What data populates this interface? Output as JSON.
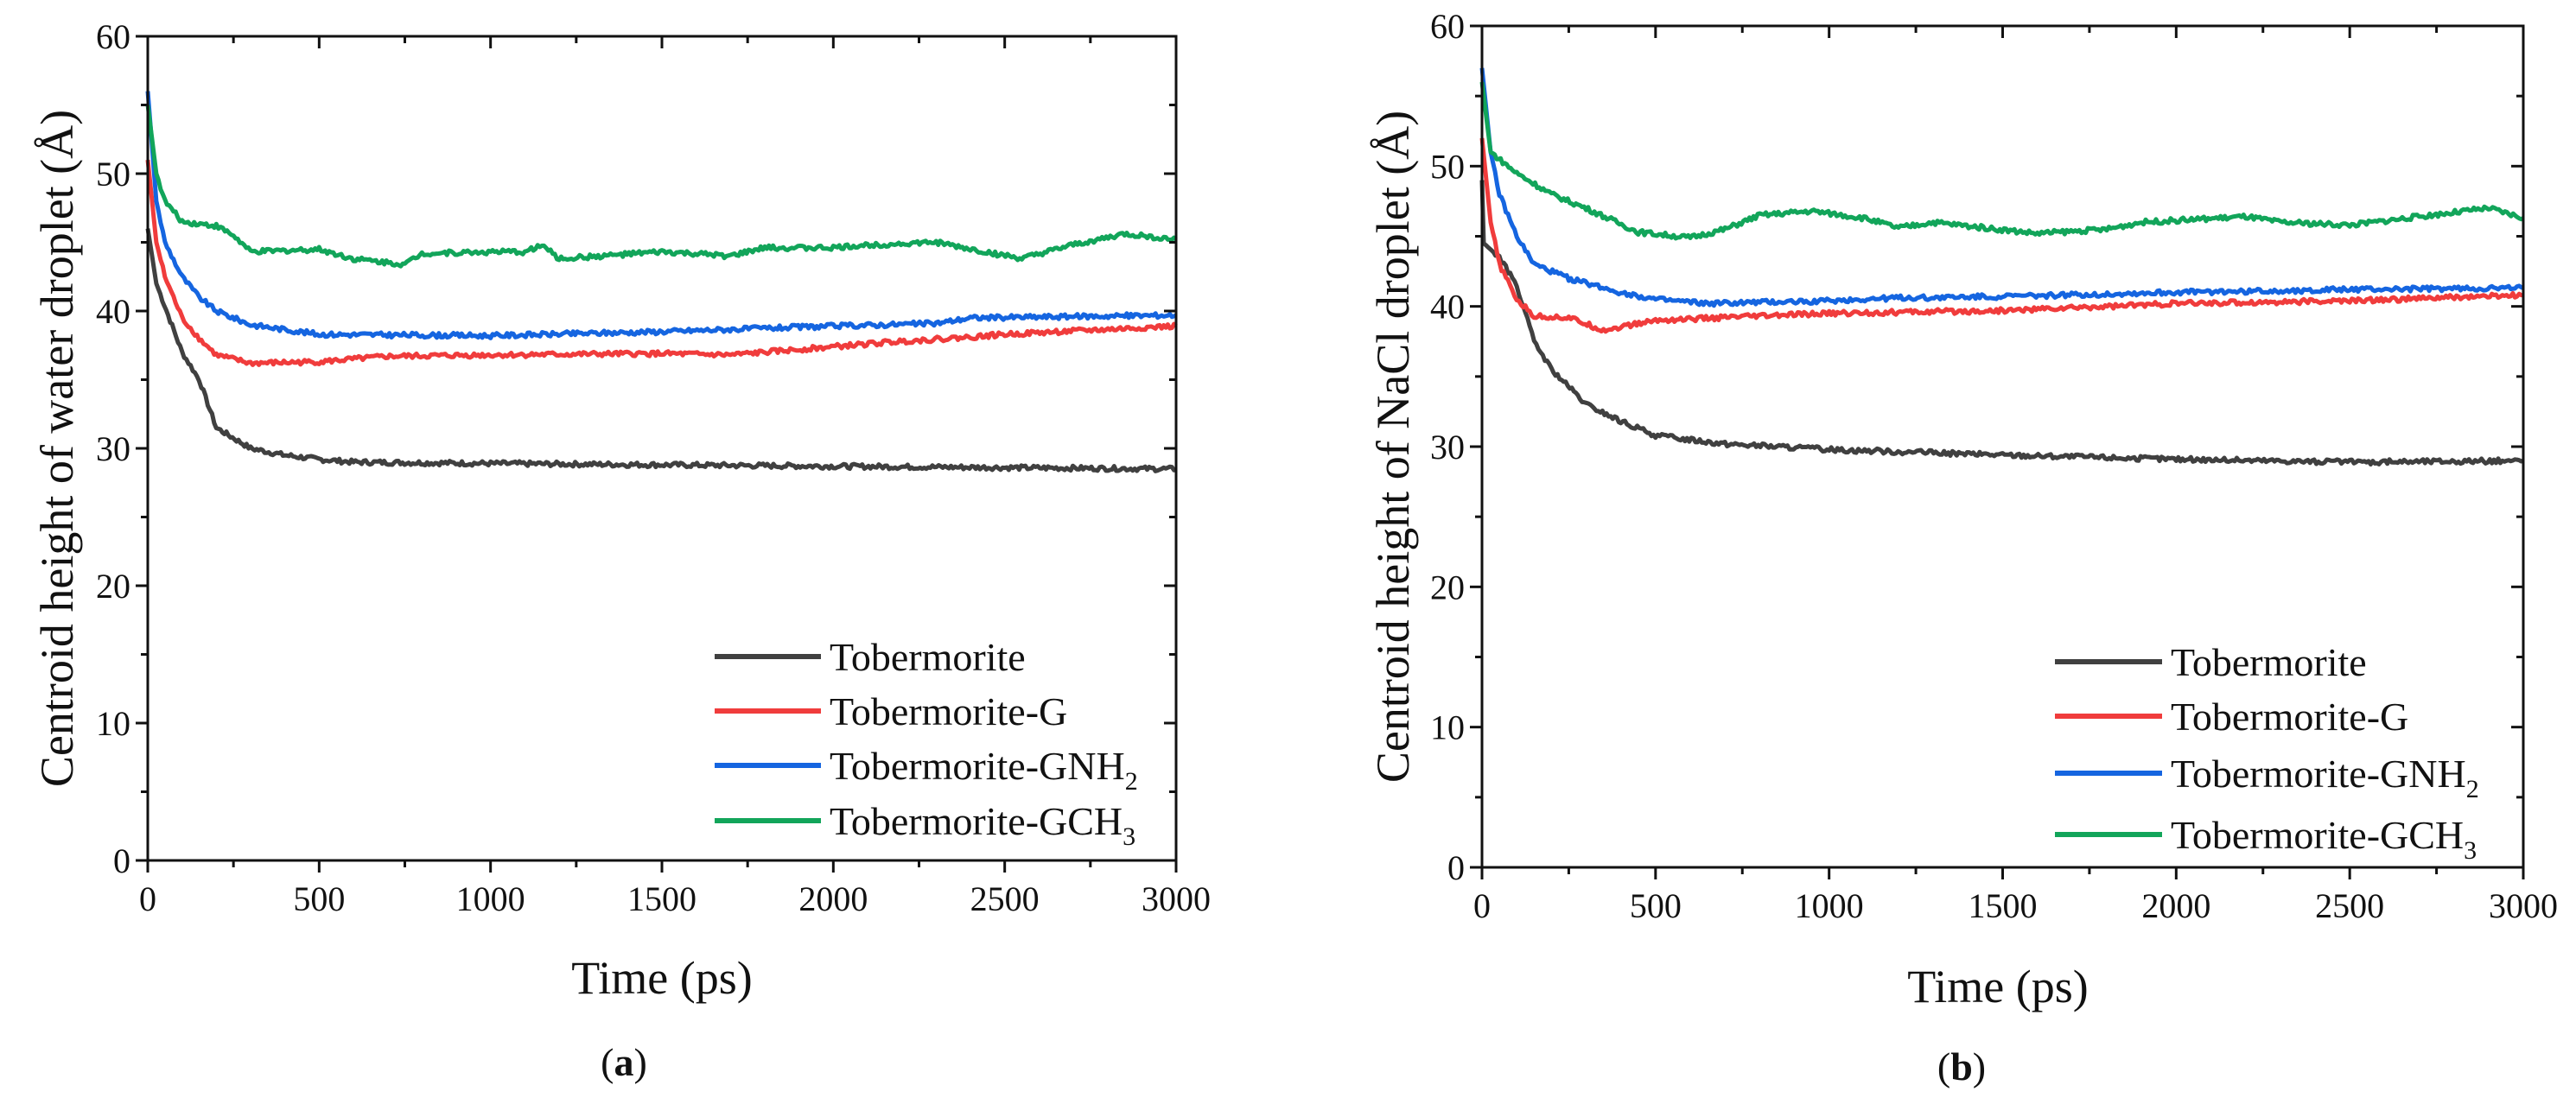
{
  "chart_data": [
    {
      "type": "line",
      "panel_label": "a",
      "xlabel": "Time (ps)",
      "ylabel": "Centroid height of water droplet (Å)",
      "xlim": [
        0,
        3000
      ],
      "ylim": [
        0,
        60
      ],
      "xticks": [
        0,
        500,
        1000,
        1500,
        2000,
        2500,
        3000
      ],
      "yticks": [
        0,
        10,
        20,
        30,
        40,
        50,
        60
      ],
      "legend_position": "bottom-right",
      "series": [
        {
          "name": "Tobermorite",
          "label": {
            "text": "Tobermorite",
            "sub": ""
          },
          "color": "#404040",
          "x": [
            0,
            25,
            100,
            150,
            200,
            300,
            400,
            500,
            600,
            1000,
            1500,
            2000,
            2500,
            3000
          ],
          "y": [
            46,
            42,
            37,
            35,
            31.5,
            30,
            29.5,
            29.2,
            29,
            28.9,
            28.8,
            28.7,
            28.6,
            28.5
          ]
        },
        {
          "name": "Tobermorite-G",
          "label": {
            "text": "Tobermorite-G",
            "sub": ""
          },
          "color": "#f03c3c",
          "x": [
            0,
            25,
            50,
            100,
            150,
            200,
            300,
            500,
            700,
            1000,
            1500,
            1700,
            2000,
            2200,
            2400,
            2500,
            3000
          ],
          "y": [
            51,
            45,
            42.5,
            39.5,
            38,
            36.8,
            36.2,
            36.3,
            36.7,
            36.8,
            36.9,
            36.8,
            37.4,
            37.8,
            38.1,
            38.3,
            38.9
          ]
        },
        {
          "name": "Tobermorite-GNH2",
          "label": {
            "text": "Tobermorite-GNH",
            "sub": "2"
          },
          "color": "#1565e0",
          "x": [
            0,
            25,
            50,
            100,
            150,
            200,
            300,
            500,
            1000,
            1500,
            2000,
            2300,
            2400,
            3000
          ],
          "y": [
            56,
            48,
            45,
            42.5,
            41,
            40,
            39,
            38.3,
            38.2,
            38.5,
            38.9,
            39.1,
            39.5,
            39.7
          ]
        },
        {
          "name": "Tobermorite-GCH3",
          "label": {
            "text": "Tobermorite-GCH",
            "sub": "3"
          },
          "color": "#12a55a",
          "x": [
            0,
            25,
            50,
            100,
            200,
            250,
            300,
            400,
            500,
            600,
            750,
            800,
            1000,
            1100,
            1150,
            1200,
            1500,
            1700,
            1800,
            2000,
            2100,
            2300,
            2400,
            2550,
            2700,
            2850,
            3000
          ],
          "y": [
            55,
            50,
            48,
            46.5,
            46.2,
            45.5,
            44.3,
            44.4,
            44.5,
            43.8,
            43.4,
            44.2,
            44.3,
            44.3,
            44.8,
            43.8,
            44.3,
            44,
            44.6,
            44.6,
            44.8,
            45,
            44.5,
            43.8,
            44.8,
            45.6,
            45.2
          ]
        }
      ]
    },
    {
      "type": "line",
      "panel_label": "b",
      "xlabel": "Time (ps)",
      "ylabel": "Centroid height of NaCl droplet (Å)",
      "xlim": [
        0,
        3000
      ],
      "ylim": [
        0,
        60
      ],
      "xticks": [
        0,
        500,
        1000,
        1500,
        2000,
        2500,
        3000
      ],
      "yticks": [
        0,
        10,
        20,
        30,
        40,
        50,
        60
      ],
      "legend_position": "bottom-right",
      "series": [
        {
          "name": "Tobermorite",
          "label": {
            "text": "Tobermorite",
            "sub": ""
          },
          "color": "#404040",
          "x": [
            0,
            5,
            50,
            100,
            150,
            200,
            300,
            400,
            500,
            700,
            1000,
            1500,
            2000,
            2500,
            3000
          ],
          "y": [
            49,
            44.5,
            43.5,
            41.5,
            37.5,
            35.5,
            33,
            31.8,
            30.8,
            30.2,
            29.8,
            29.4,
            29.1,
            28.9,
            29
          ]
        },
        {
          "name": "Tobermorite-G",
          "label": {
            "text": "Tobermorite-G",
            "sub": ""
          },
          "color": "#f03c3c",
          "x": [
            0,
            25,
            50,
            100,
            150,
            250,
            350,
            500,
            700,
            1000,
            1500,
            2000,
            2500,
            3000
          ],
          "y": [
            52,
            46,
            43,
            40.5,
            39.3,
            39.2,
            38.3,
            39,
            39.2,
            39.5,
            39.7,
            40.2,
            40.4,
            40.8
          ]
        },
        {
          "name": "Tobermorite-GNH2",
          "label": {
            "text": "Tobermorite-GNH",
            "sub": "2"
          },
          "color": "#1565e0",
          "x": [
            0,
            25,
            50,
            100,
            150,
            250,
            400,
            500,
            650,
            1000,
            1200,
            1500,
            2000,
            2500,
            3000
          ],
          "y": [
            57,
            51,
            48,
            45,
            43,
            42,
            41,
            40.5,
            40.2,
            40.4,
            40.6,
            40.7,
            41,
            41.2,
            41.3
          ]
        },
        {
          "name": "Tobermorite-GCH3",
          "label": {
            "text": "Tobermorite-GCH",
            "sub": "3"
          },
          "color": "#12a55a",
          "x": [
            0,
            25,
            100,
            200,
            300,
            450,
            600,
            700,
            800,
            950,
            1100,
            1200,
            1300,
            1600,
            1800,
            1900,
            2200,
            2300,
            2500,
            2700,
            2900,
            3000
          ],
          "y": [
            56,
            51,
            49.5,
            48,
            47,
            45.3,
            44.9,
            45.5,
            46.5,
            46.8,
            46.3,
            45.6,
            46,
            45.2,
            45.5,
            46,
            46.4,
            46,
            45.8,
            46.4,
            47,
            46.3
          ]
        }
      ]
    }
  ]
}
